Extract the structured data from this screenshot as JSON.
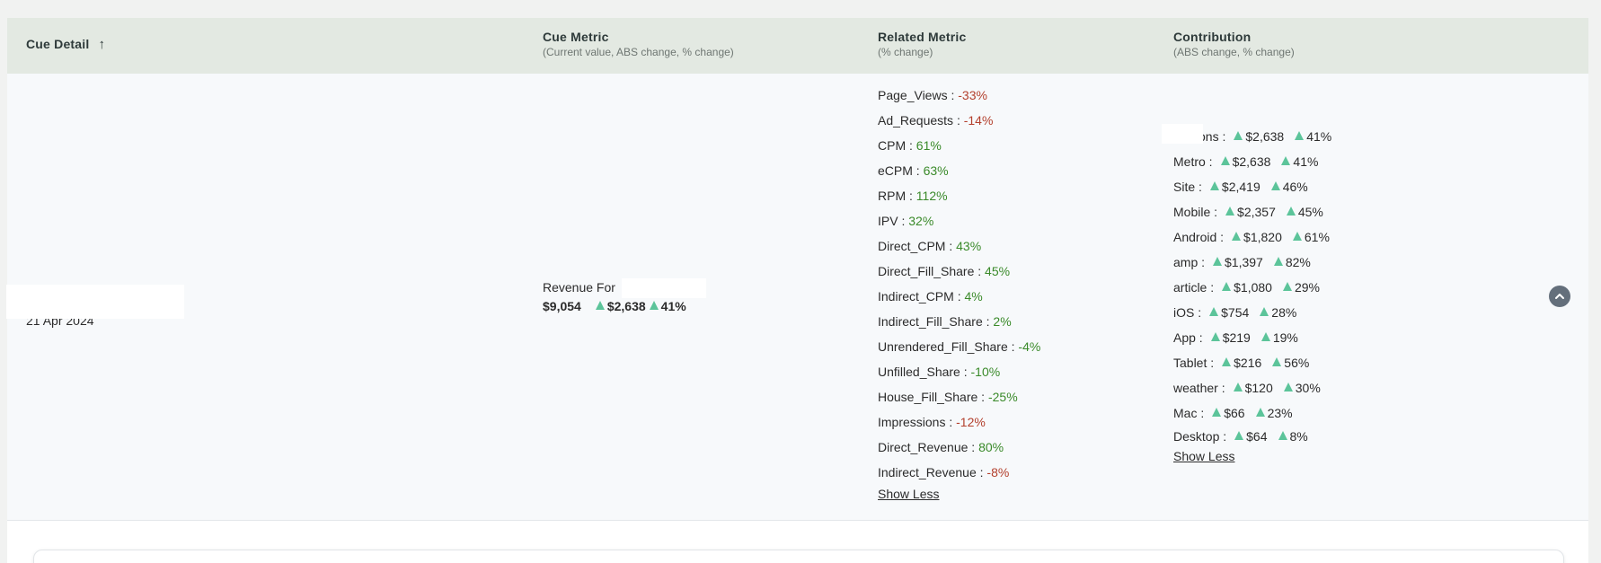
{
  "header": {
    "cue_detail": "Cue Detail",
    "cue_metric": "Cue Metric",
    "cue_metric_sub": "(Current value, ABS change, % change)",
    "related_metric": "Related Metric",
    "related_metric_sub": "(% change)",
    "contribution": "Contribution",
    "contribution_sub": "(ABS change, % change)"
  },
  "icons": {
    "sort": "arrow-up-icon",
    "collapse": "chevron-up-icon",
    "trend_up": "triangle-up-icon"
  },
  "colors": {
    "header_bg": "#e3e9e2",
    "row_bg": "#f7f9fb",
    "positive": "#3a8a2a",
    "negative": "#b3402d",
    "trend_up": "#5cc49a"
  },
  "row": {
    "cue_detail": {
      "date": "21 Apr 2024"
    },
    "cue_metric": {
      "label": "Revenue For",
      "current": "$9,054",
      "abs_change": "$2,638",
      "pct_change": "41%"
    },
    "related": [
      {
        "name": "Page_Views :",
        "value": "-33%",
        "tone": "neg"
      },
      {
        "name": "Ad_Requests :",
        "value": "-14%",
        "tone": "neg"
      },
      {
        "name": "CPM :",
        "value": "61%",
        "tone": "pos"
      },
      {
        "name": "eCPM :",
        "value": "63%",
        "tone": "pos"
      },
      {
        "name": "RPM :",
        "value": "112%",
        "tone": "pos"
      },
      {
        "name": "IPV :",
        "value": "32%",
        "tone": "pos"
      },
      {
        "name": "Direct_CPM :",
        "value": "43%",
        "tone": "pos"
      },
      {
        "name": "Direct_Fill_Share :",
        "value": "45%",
        "tone": "pos"
      },
      {
        "name": "Indirect_CPM :",
        "value": "4%",
        "tone": "pos"
      },
      {
        "name": "Indirect_Fill_Share :",
        "value": "2%",
        "tone": "pos"
      },
      {
        "name": "Unrendered_Fill_Share :",
        "value": "-4%",
        "tone": "pos"
      },
      {
        "name": "Unfilled_Share :",
        "value": "-10%",
        "tone": "pos"
      },
      {
        "name": "House_Fill_Share :",
        "value": "-25%",
        "tone": "pos"
      },
      {
        "name": "Impressions :",
        "value": "-12%",
        "tone": "neg"
      },
      {
        "name": "Direct_Revenue :",
        "value": "80%",
        "tone": "pos"
      },
      {
        "name": "Indirect_Revenue :",
        "value": "-8%",
        "tone": "neg"
      }
    ],
    "related_show_less": "Show Less",
    "contribution": [
      {
        "name": "Stations :",
        "abs": "$2,638",
        "pct": "41%"
      },
      {
        "name": "Metro :",
        "abs": "$2,638",
        "pct": "41%"
      },
      {
        "name": "Site :",
        "abs": "$2,419",
        "pct": "46%"
      },
      {
        "name": "Mobile :",
        "abs": "$2,357",
        "pct": "45%"
      },
      {
        "name": "Android :",
        "abs": "$1,820",
        "pct": "61%"
      },
      {
        "name": "amp :",
        "abs": "$1,397",
        "pct": "82%"
      },
      {
        "name": "article :",
        "abs": "$1,080",
        "pct": "29%"
      },
      {
        "name": "iOS :",
        "abs": "$754",
        "pct": "28%"
      },
      {
        "name": "App :",
        "abs": "$219",
        "pct": "19%"
      },
      {
        "name": "Tablet :",
        "abs": "$216",
        "pct": "56%"
      },
      {
        "name": "weather :",
        "abs": "$120",
        "pct": "30%"
      },
      {
        "name": "Mac :",
        "abs": "$66",
        "pct": "23%"
      },
      {
        "name": "Desktop :",
        "abs": "$64",
        "pct": "8%"
      }
    ],
    "contribution_show_less": "Show Less"
  }
}
